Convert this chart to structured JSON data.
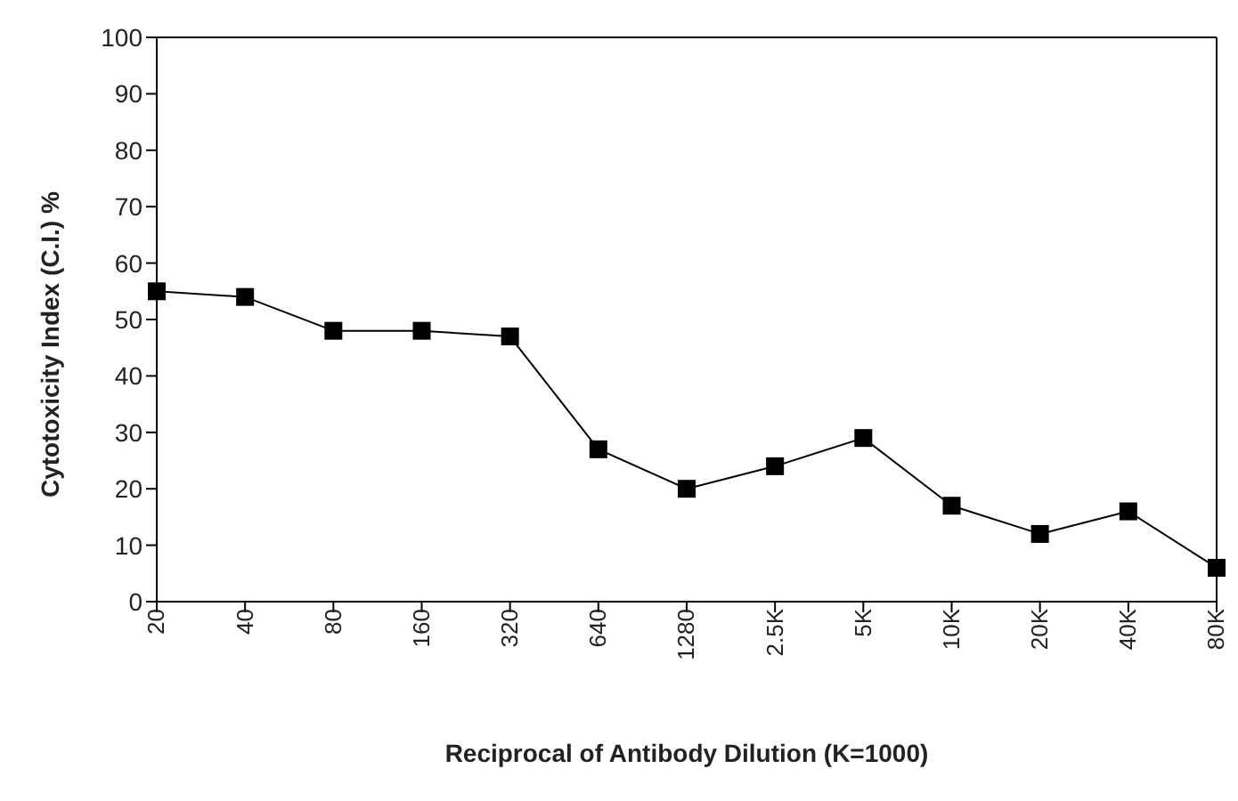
{
  "chart_data": {
    "type": "line",
    "xlabel": "Reciprocal of Antibody Dilution (K=1000)",
    "ylabel": "Cytotoxicity Index (C.I.) %",
    "categories": [
      "20",
      "40",
      "80",
      "160",
      "320",
      "640",
      "1280",
      "2.5K",
      "5K",
      "10K",
      "20K",
      "40K",
      "80K"
    ],
    "series": [
      {
        "color": "#000000",
        "values": [
          55,
          54,
          48,
          48,
          47,
          27,
          20,
          24,
          29,
          17,
          12,
          16,
          6
        ]
      }
    ],
    "ylim": [
      0,
      100
    ],
    "yticks": [
      0,
      10,
      20,
      30,
      40,
      50,
      60,
      70,
      80,
      90,
      100
    ],
    "grid": false,
    "legend": false,
    "marker": "square",
    "line_style": "solid"
  }
}
